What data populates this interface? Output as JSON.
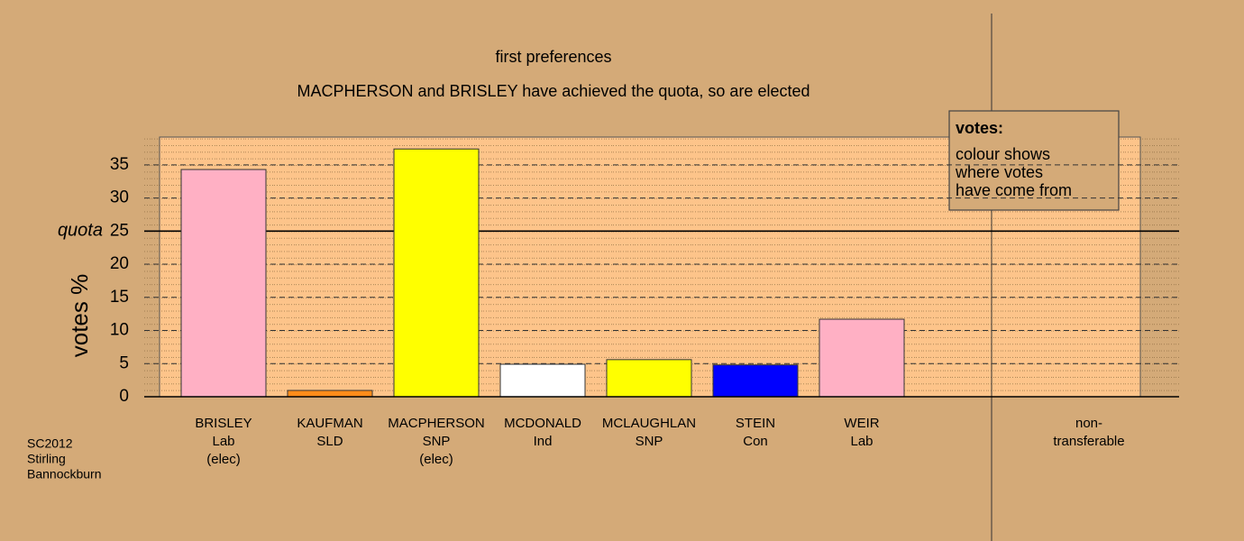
{
  "chart_data": {
    "type": "bar",
    "title": "first preferences",
    "subtitle": "MACPHERSON and BRISLEY have achieved the quota, so are elected",
    "y_label": "votes %",
    "categories": [
      [
        "BRISLEY",
        "Lab",
        "(elec)"
      ],
      [
        "KAUFMAN",
        "SLD"
      ],
      [
        "MACPHERSON",
        "SNP",
        "(elec)"
      ],
      [
        "MCDONALD",
        "Ind"
      ],
      [
        "MCLAUGHLAN",
        "SNP"
      ],
      [
        "STEIN",
        "Con"
      ],
      [
        "WEIR",
        "Lab"
      ],
      [
        "non-",
        "transferable"
      ]
    ],
    "values": [
      34.3,
      0.95,
      37.4,
      4.9,
      5.6,
      4.8,
      11.7,
      0
    ],
    "colors": [
      "#ffb0c4",
      "#ff8c1a",
      "#ffff00",
      "#ffffff",
      "#ffff00",
      "#0000ff",
      "#ffb0c4",
      "#cccccc"
    ],
    "ylim": [
      0,
      39.2
    ],
    "yticks": [
      0,
      5,
      10,
      15,
      20,
      25,
      30,
      35
    ],
    "grid": true,
    "quota_line": {
      "value": 25,
      "label": "quota"
    },
    "legend_box": {
      "title": "votes:",
      "lines": [
        "colour shows",
        "where votes",
        "have come from"
      ]
    },
    "footer_lines": [
      "SC2012",
      "Stirling",
      "Bannockburn"
    ]
  }
}
